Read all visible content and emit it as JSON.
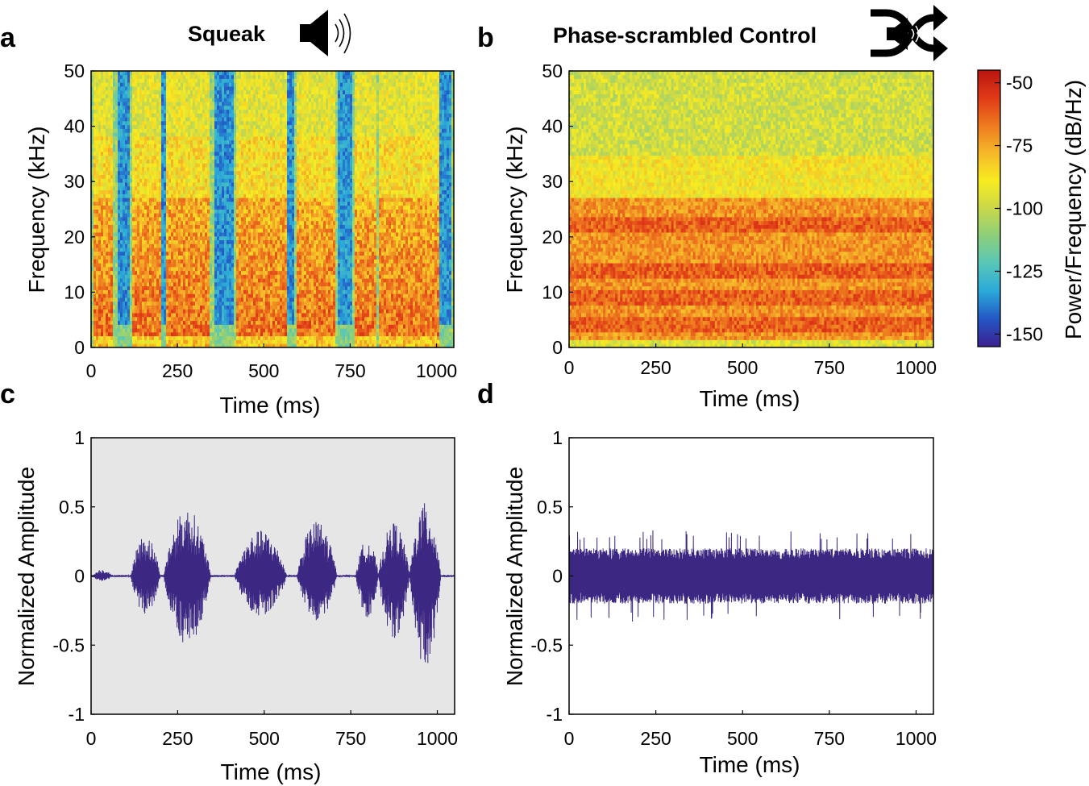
{
  "chart_data": [
    {
      "panel": "a",
      "type": "heatmap",
      "title": "Squeak",
      "icon": "speaker-icon",
      "xlabel": "Time (ms)",
      "ylabel": "Frequency (kHz)",
      "xlim": [
        0,
        1050
      ],
      "ylim": [
        0,
        50
      ],
      "xticks": [
        0,
        250,
        500,
        750,
        1000
      ],
      "yticks": [
        0,
        10,
        20,
        30,
        40,
        50
      ],
      "syllables_ms": [
        [
          10,
          60
        ],
        [
          120,
          200
        ],
        [
          215,
          345
        ],
        [
          420,
          565
        ],
        [
          595,
          710
        ],
        [
          765,
          825
        ],
        [
          835,
          920
        ],
        [
          920,
          1010
        ]
      ],
      "gaps_ms": [
        [
          75,
          110
        ],
        [
          205,
          215
        ],
        [
          355,
          410
        ],
        [
          570,
          590
        ],
        [
          715,
          755
        ],
        [
          1010,
          1040
        ]
      ],
      "power_range_dbhz": [
        -155,
        -45
      ]
    },
    {
      "panel": "b",
      "type": "heatmap",
      "title": "Phase-scrambled Control",
      "icon": "shuffle-speaker-icon",
      "xlabel": "Time (ms)",
      "ylabel": "Frequency (kHz)",
      "xlim": [
        0,
        1050
      ],
      "ylim": [
        0,
        50
      ],
      "xticks": [
        0,
        250,
        500,
        750,
        1000
      ],
      "yticks": [
        0,
        10,
        20,
        30,
        40,
        50
      ],
      "strong_bands_khz": [
        4,
        9,
        14,
        22
      ],
      "power_range_dbhz": [
        -155,
        -45
      ]
    },
    {
      "panel": "c",
      "type": "line",
      "xlabel": "Time (ms)",
      "ylabel": "Normalized Amplitude",
      "xlim": [
        0,
        1050
      ],
      "ylim": [
        -1,
        1
      ],
      "xticks": [
        0,
        250,
        500,
        750,
        1000
      ],
      "yticks": [
        -1,
        -0.5,
        0,
        0.5,
        1
      ],
      "ytick_labels": [
        "-1",
        "-0.5",
        "0",
        "0.5",
        "1"
      ],
      "line_color": "#3c2783",
      "background": "#e6e6e6",
      "envelope": [
        {
          "start": 5,
          "end": 60,
          "pos": 0.05,
          "neg": -0.04
        },
        {
          "start": 115,
          "end": 200,
          "pos": 0.3,
          "neg": -0.28
        },
        {
          "start": 210,
          "end": 345,
          "pos": 0.49,
          "neg": -0.51
        },
        {
          "start": 415,
          "end": 565,
          "pos": 0.33,
          "neg": -0.29
        },
        {
          "start": 595,
          "end": 710,
          "pos": 0.4,
          "neg": -0.33
        },
        {
          "start": 765,
          "end": 830,
          "pos": 0.27,
          "neg": -0.3
        },
        {
          "start": 830,
          "end": 920,
          "pos": 0.39,
          "neg": -0.45
        },
        {
          "start": 920,
          "end": 1010,
          "pos": 0.53,
          "neg": -0.66
        }
      ]
    },
    {
      "panel": "d",
      "type": "line",
      "xlabel": "Time (ms)",
      "ylabel": "Normalized Amplitude",
      "xlim": [
        0,
        1050
      ],
      "ylim": [
        -1,
        1
      ],
      "xticks": [
        0,
        250,
        500,
        750,
        1000
      ],
      "yticks": [
        -1,
        -0.5,
        0,
        0.5,
        1
      ],
      "ytick_labels": [
        "-1",
        "-0.5",
        "0",
        "0.5",
        "1"
      ],
      "line_color": "#3c2783",
      "background": "#ffffff",
      "noise": {
        "core_amplitude": 0.2,
        "peak_amplitude": 0.33,
        "negative_peak": -0.34
      }
    }
  ],
  "colorbar": {
    "label": "Power/Frequency (dB/Hz)",
    "ticks": [
      -50,
      -75,
      -100,
      -125,
      -150
    ],
    "range": [
      -155,
      -45
    ],
    "colormap": [
      "#3b1f8f",
      "#2457c5",
      "#2aa8d8",
      "#58c7b8",
      "#8ccf7c",
      "#c9d84a",
      "#f8ec20",
      "#f5b82a",
      "#ee7a1f",
      "#e03a18",
      "#b9140f"
    ]
  },
  "panel_letters": [
    "a",
    "b",
    "c",
    "d"
  ]
}
